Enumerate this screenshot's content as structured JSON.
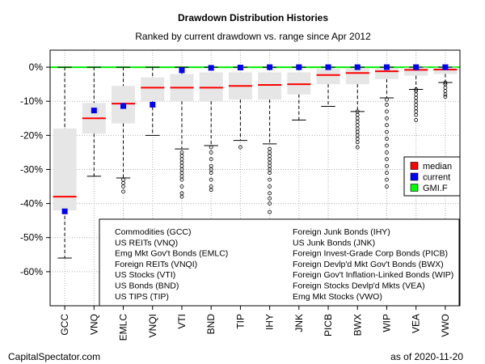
{
  "chart_data": {
    "type": "boxplot",
    "title": "Drawdown Distribution Histories",
    "subtitle": "Ranked by current drawdown vs. range since Apr 2012",
    "ylim": [
      -70,
      5
    ],
    "yticks": [
      0,
      -10,
      -20,
      -30,
      -40,
      -50,
      -60
    ],
    "ytick_labels": [
      "0%",
      "-10%",
      "-20%",
      "-30%",
      "-40%",
      "-50%",
      "-60%"
    ],
    "grid": true,
    "categories": [
      "GCC",
      "VNQ",
      "EMLC",
      "VNQI",
      "VTI",
      "BND",
      "TIP",
      "IHY",
      "JNK",
      "PICB",
      "BWX",
      "WIP",
      "VEA",
      "VWO"
    ],
    "boxes": [
      {
        "q1": -42,
        "median": -38,
        "q3": -18,
        "whisker_low": -56,
        "whisker_high": 0,
        "current": -42.3
      },
      {
        "q1": -19.5,
        "median": -15,
        "q3": -10.5,
        "whisker_low": -32,
        "whisker_high": 0,
        "current": -12.7
      },
      {
        "q1": -16.5,
        "median": -10.7,
        "q3": -5.5,
        "whisker_low": -32.5,
        "whisker_high": 0,
        "current": -11.4
      },
      {
        "q1": -10,
        "median": -6,
        "q3": -3,
        "whisker_low": -20,
        "whisker_high": 0,
        "current": -11
      },
      {
        "q1": -10,
        "median": -6,
        "q3": -2,
        "whisker_low": -24,
        "whisker_high": 0,
        "current": -0.9
      },
      {
        "q1": -10,
        "median": -6,
        "q3": -1.5,
        "whisker_low": -23,
        "whisker_high": 0,
        "current": -0.2
      },
      {
        "q1": -9.5,
        "median": -5.5,
        "q3": -1.5,
        "whisker_low": -21.5,
        "whisker_high": 0,
        "current": -0.1
      },
      {
        "q1": -9.5,
        "median": -5.2,
        "q3": -1.5,
        "whisker_low": -22.5,
        "whisker_high": 0,
        "current": 0
      },
      {
        "q1": -8,
        "median": -5,
        "q3": -1.5,
        "whisker_low": -15.5,
        "whisker_high": 0,
        "current": 0
      },
      {
        "q1": -5,
        "median": -2.3,
        "q3": -0.5,
        "whisker_low": -11.5,
        "whisker_high": 0,
        "current": 0
      },
      {
        "q1": -5,
        "median": -1.7,
        "q3": -0.3,
        "whisker_low": -13,
        "whisker_high": 0,
        "current": 0
      },
      {
        "q1": -3.5,
        "median": -1.2,
        "q3": -0.2,
        "whisker_low": -9,
        "whisker_high": 0,
        "current": 0
      },
      {
        "q1": -2.5,
        "median": -0.8,
        "q3": -0.1,
        "whisker_low": -6.5,
        "whisker_high": 0,
        "current": 0
      },
      {
        "q1": -2,
        "median": -0.7,
        "q3": -0.1,
        "whisker_low": -4.5,
        "whisker_high": 0,
        "current": 0
      }
    ],
    "outliers": [
      {
        "index": 2,
        "values": [
          -33,
          -34,
          -35,
          -36.5
        ]
      },
      {
        "index": 4,
        "values": [
          -25,
          -26,
          -27,
          -28,
          -29,
          -30,
          -31,
          -32,
          -33,
          -35,
          -37,
          -38
        ]
      },
      {
        "index": 5,
        "values": [
          -23.5,
          -25,
          -27,
          -29,
          -30,
          -31,
          -33,
          -35,
          -36
        ]
      },
      {
        "index": 6,
        "values": [
          -23.5
        ]
      },
      {
        "index": 7,
        "values": [
          -24,
          -25,
          -26,
          -27,
          -28,
          -29,
          -30,
          -31,
          -33,
          -35,
          -37,
          -38.5,
          -40,
          -42.5
        ]
      },
      {
        "index": 10,
        "values": [
          -13,
          -14,
          -15,
          -16,
          -17,
          -18,
          -19,
          -20,
          -21,
          -22,
          -23.5
        ]
      },
      {
        "index": 11,
        "values": [
          -9.5,
          -11,
          -13,
          -15,
          -17,
          -19,
          -21,
          -23,
          -25,
          -27,
          -29,
          -31,
          -33,
          -35
        ]
      },
      {
        "index": 12,
        "values": [
          -6.5,
          -7,
          -8,
          -9,
          -10,
          -11,
          -12,
          -13,
          -14,
          -15.5
        ]
      },
      {
        "index": 13,
        "values": [
          -4.5,
          -5,
          -6,
          -7,
          -8,
          -8.7
        ]
      }
    ],
    "reference_line": {
      "value": 0,
      "label": "GMI.F"
    },
    "legend": {
      "position": "right",
      "items": [
        {
          "label": "median",
          "color": "#ff0000"
        },
        {
          "label": "current",
          "color": "#0000ff"
        },
        {
          "label": "GMI.F",
          "color": "#00ff00"
        }
      ]
    },
    "key": {
      "column1": [
        "Commodities (GCC)",
        "US REITs (VNQ)",
        "Emg Mkt Gov't Bonds (EMLC)",
        "Foreign REITs (VNQI)",
        "US Stocks (VTI)",
        "US Bonds (BND)",
        "US TIPS (TIP)"
      ],
      "column2": [
        "Foreign Junk Bonds (IHY)",
        "US Junk Bonds (JNK)",
        "Foreign Invest-Grade Corp Bonds (PICB)",
        "Foreign Devlp'd Mkt Gov't Bonds (BWX)",
        "Foreign Gov't Inflation-Linked Bonds (WIP)",
        "Foreign Stocks Devlp'd Mkts (VEA)",
        "Emg Mkt Stocks (VWO)"
      ]
    }
  },
  "footer": {
    "source": "CapitalSpectator.com",
    "date": "as of  2020-11-20"
  },
  "colors": {
    "box": "#e6e6e6",
    "median": "#ff0000",
    "current": "#0000ff",
    "reference": "#00ee00",
    "grid": "#b0b0b0"
  }
}
